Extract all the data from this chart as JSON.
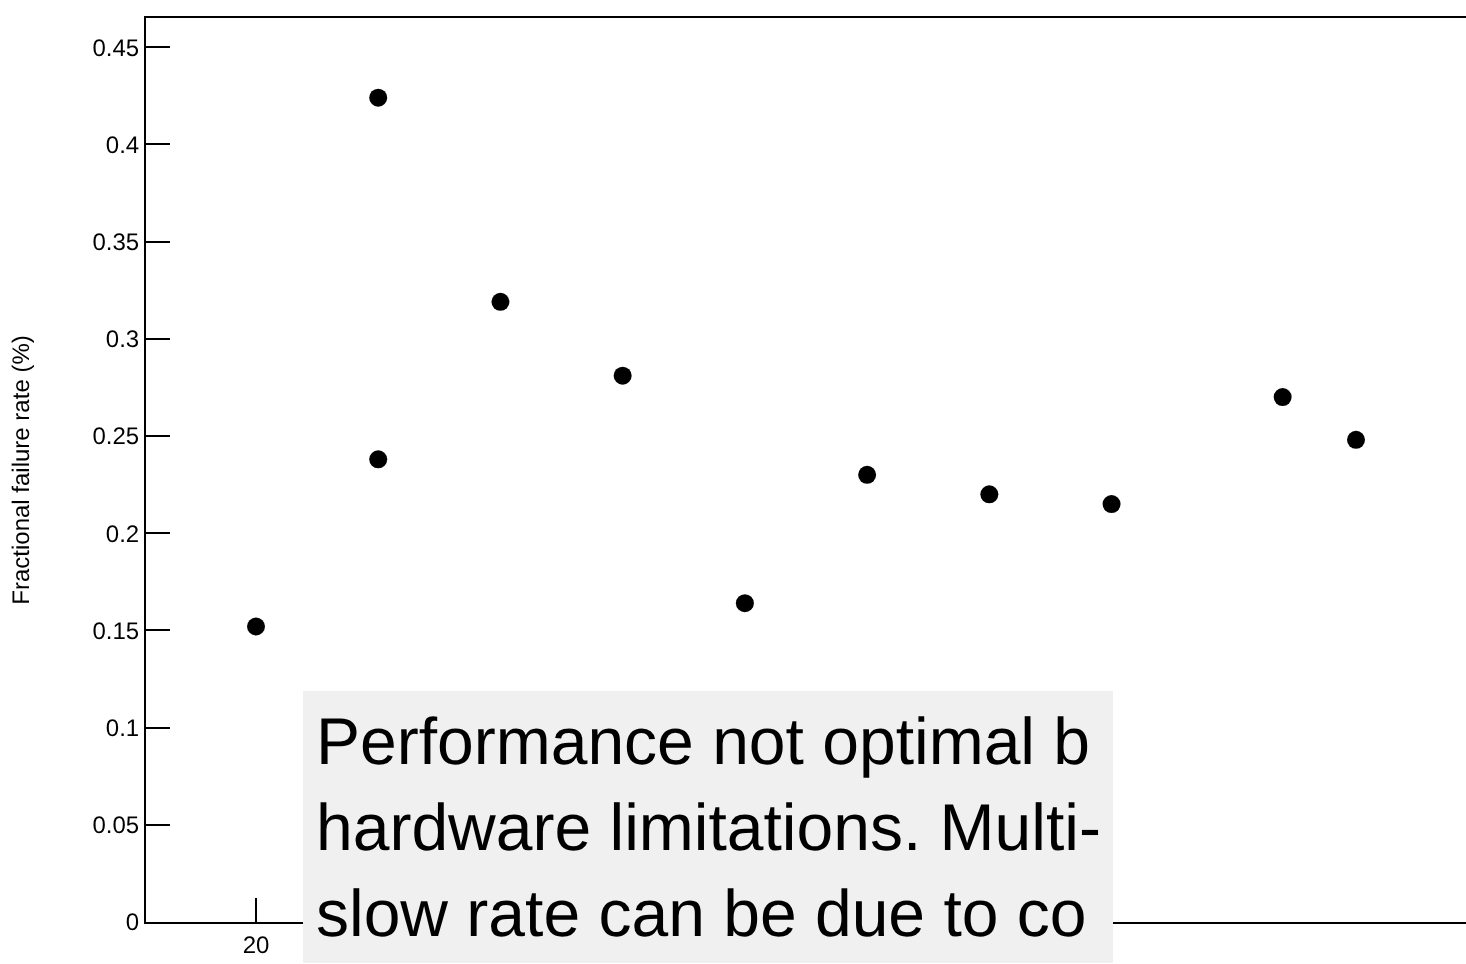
{
  "chart_data": {
    "type": "scatter",
    "ylabel": "Fractional failure rate (%)",
    "categories": [
      null,
      null,
      null,
      null,
      "20",
      null,
      null,
      null,
      null,
      null,
      null,
      null,
      null,
      null,
      null,
      null,
      null,
      null,
      null,
      null,
      null,
      null,
      null,
      null,
      null,
      null,
      null,
      null,
      null,
      null,
      null,
      null,
      null,
      null,
      null,
      null,
      null,
      null,
      null,
      null,
      null,
      null,
      null,
      null,
      null,
      null,
      null,
      null,
      null,
      null,
      null,
      null,
      null,
      null
    ],
    "series": [
      {
        "color": "#000000",
        "values": [
          null,
          null,
          null,
          null,
          0.152,
          null,
          null,
          null,
          null,
          0.424,
          null,
          null,
          null,
          null,
          0.319,
          null,
          null,
          null,
          null,
          0.281,
          null,
          null,
          null,
          null,
          0.164,
          null,
          null,
          null,
          null,
          0.23,
          null,
          null,
          null,
          null,
          0.22,
          null,
          null,
          null,
          null,
          0.215,
          null,
          null,
          null,
          null,
          null,
          null,
          0.27,
          null,
          null,
          0.248,
          null,
          null,
          null,
          null
        ]
      },
      {
        "color": "#000000",
        "values": [
          null,
          null,
          null,
          null,
          null,
          null,
          null,
          null,
          null,
          0.238,
          null,
          null,
          null,
          null,
          null,
          null,
          null,
          null,
          null,
          null,
          null,
          null,
          null,
          null,
          null,
          null,
          null,
          null,
          null,
          null,
          null,
          null,
          null,
          null,
          null,
          null,
          null,
          null,
          null,
          null,
          null,
          null,
          null,
          null,
          null,
          null,
          null,
          null,
          null,
          null,
          null,
          null,
          null,
          null
        ]
      }
    ],
    "marker": "circle",
    "ylim": [
      0,
      0.465
    ],
    "yticks": [
      0,
      0.05,
      0.1,
      0.15,
      0.2,
      0.25,
      0.3,
      0.35,
      0.4,
      0.45
    ],
    "annotations": [
      "Performance not optimal b\nhardware limitations. Multi-\nslow rate can be due to co"
    ]
  }
}
